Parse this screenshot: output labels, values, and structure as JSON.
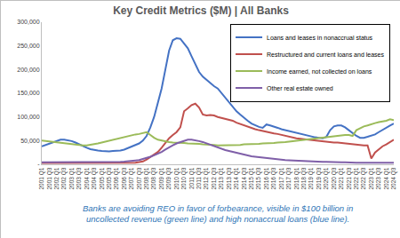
{
  "chart_data": {
    "type": "line",
    "title": "Key Credit Metrics ($M) | All Banks",
    "categories": [
      "2001 Q1",
      null,
      "2001 Q3",
      null,
      "2002 Q1",
      null,
      "2002 Q3",
      null,
      "2003 Q1",
      null,
      "2003 Q3",
      null,
      "2004 Q1",
      null,
      "2004 Q3",
      null,
      "2005 Q1",
      null,
      "2005 Q3",
      null,
      "2006 Q1",
      null,
      "2006 Q3",
      null,
      "2007 Q1",
      null,
      "2007 Q3",
      null,
      "2008 Q1",
      null,
      "2008 Q3",
      null,
      "2009 Q1",
      null,
      "2009 Q3",
      null,
      "2010 Q1",
      null,
      "2010 Q3",
      null,
      "2011 Q1",
      null,
      "2011 Q3",
      null,
      "2012 Q1",
      null,
      "2012 Q3",
      null,
      "2013 Q1",
      null,
      "2013 Q3",
      null,
      "2014 Q1",
      null,
      "2014 Q3",
      null,
      "2015 Q1",
      null,
      "2015 Q3",
      null,
      "2016 Q1",
      null,
      "2016 Q3",
      null,
      "2017 Q1",
      null,
      "2017 Q3",
      null,
      "2018 Q1",
      null,
      "2018 Q3",
      null,
      "2019 Q1",
      null,
      "2019 Q3",
      null,
      "2020 Q1",
      null,
      "2020 Q3",
      null,
      "2021 Q1",
      null,
      "2021 Q3",
      null,
      "2022 Q1",
      null,
      "2022 Q3",
      null,
      "2023 Q1",
      null,
      "2023 Q3",
      null,
      "2024 Q1",
      null,
      "2024 Q3"
    ],
    "series": [
      {
        "name": "Loans and leases in nonaccrual status",
        "color": "#4472c4",
        "values": [
          38000,
          41000,
          44000,
          47000,
          50000,
          52000,
          52000,
          51000,
          49000,
          46000,
          42000,
          38000,
          35000,
          32000,
          30000,
          29000,
          28000,
          27000,
          27000,
          28000,
          28000,
          29000,
          31000,
          34000,
          37000,
          40000,
          44000,
          50000,
          60000,
          78000,
          100000,
          130000,
          160000,
          200000,
          240000,
          262000,
          266000,
          265000,
          255000,
          245000,
          228000,
          210000,
          195000,
          185000,
          178000,
          172000,
          165000,
          160000,
          150000,
          140000,
          130000,
          122000,
          112000,
          105000,
          98000,
          92000,
          86000,
          82000,
          79000,
          77000,
          84000,
          82000,
          80000,
          77000,
          74000,
          72000,
          70000,
          68000,
          66000,
          64000,
          62000,
          60000,
          58000,
          57000,
          56000,
          55000,
          58000,
          72000,
          80000,
          82000,
          82000,
          78000,
          72000,
          66000,
          60000,
          56000,
          56000,
          58000,
          60000,
          63000,
          68000,
          73000,
          78000,
          82000,
          86000
        ]
      },
      {
        "name": "Restructured and current loans and leases",
        "color": "#c0504d",
        "values": [
          3000,
          3000,
          3000,
          3000,
          3000,
          3000,
          3000,
          3000,
          3000,
          3000,
          3000,
          3000,
          2500,
          2500,
          2500,
          2500,
          2500,
          2500,
          2500,
          2500,
          2500,
          2500,
          2500,
          2500,
          3000,
          3500,
          4500,
          6000,
          10000,
          15000,
          20000,
          26000,
          35000,
          45000,
          55000,
          62000,
          68000,
          78000,
          112000,
          118000,
          125000,
          128000,
          120000,
          105000,
          103000,
          104000,
          103000,
          100000,
          98000,
          96000,
          94000,
          92000,
          88000,
          85000,
          82000,
          79000,
          76000,
          74000,
          72000,
          70000,
          68000,
          67000,
          65000,
          64000,
          62000,
          60000,
          58000,
          57000,
          55000,
          54000,
          53000,
          52000,
          51000,
          50000,
          49000,
          48000,
          47000,
          47000,
          46000,
          46000,
          45000,
          44000,
          43000,
          42000,
          42000,
          41000,
          40000,
          40000,
          12000,
          25000,
          32000,
          38000,
          42000,
          47000,
          52000
        ]
      },
      {
        "name": "Income earned, not collected on loans",
        "color": "#9bbb59",
        "values": [
          50000,
          49000,
          48000,
          47000,
          46000,
          45000,
          44000,
          43000,
          42000,
          41000,
          40000,
          40000,
          40000,
          41000,
          42000,
          44000,
          46000,
          48000,
          50000,
          52000,
          54000,
          56000,
          58000,
          60000,
          62000,
          63000,
          64000,
          66000,
          68000,
          62000,
          56000,
          52000,
          50000,
          48000,
          47000,
          46000,
          46000,
          45000,
          45000,
          44000,
          44000,
          43000,
          43000,
          42000,
          42000,
          41000,
          41000,
          40000,
          40000,
          40000,
          40000,
          41000,
          41000,
          41000,
          42000,
          42000,
          42000,
          43000,
          43000,
          44000,
          44000,
          45000,
          45000,
          46000,
          46000,
          47000,
          48000,
          49000,
          50000,
          51000,
          52000,
          53000,
          54000,
          55000,
          56000,
          57000,
          58000,
          59000,
          60000,
          61000,
          61000,
          62000,
          62000,
          60000,
          72000,
          76000,
          80000,
          82000,
          85000,
          87000,
          89000,
          90000,
          92000,
          95000,
          93000
        ]
      },
      {
        "name": "Other real estate owned",
        "color": "#7f5fa8",
        "values": [
          4000,
          4000,
          4000,
          4000,
          4000,
          4000,
          4000,
          4000,
          4500,
          4500,
          4500,
          4500,
          4500,
          4500,
          4500,
          4500,
          4500,
          4500,
          4500,
          4500,
          5000,
          5000,
          5500,
          6000,
          7000,
          8000,
          9000,
          11000,
          13000,
          16000,
          19000,
          22000,
          26000,
          31000,
          36000,
          40000,
          44000,
          47000,
          50000,
          52000,
          52000,
          51000,
          49000,
          47000,
          44000,
          41000,
          38000,
          35000,
          32000,
          30000,
          28000,
          26000,
          24000,
          22000,
          20000,
          18000,
          17000,
          16000,
          15000,
          14000,
          13000,
          12000,
          11000,
          10000,
          9500,
          9000,
          8500,
          8000,
          7500,
          7000,
          6500,
          6000,
          6000,
          5500,
          5500,
          5000,
          5000,
          4500,
          4500,
          4000,
          4000,
          4000,
          3500,
          3500,
          3500,
          3500,
          3500,
          3500,
          3500,
          3500,
          3500,
          3500,
          3500,
          3500,
          3500
        ]
      }
    ],
    "ylim": [
      0,
      300000
    ],
    "yticks": [
      {
        "value": 0,
        "label": "-"
      },
      {
        "value": 50000,
        "label": "50,000"
      },
      {
        "value": 100000,
        "label": "100,000"
      },
      {
        "value": 150000,
        "label": "150,000"
      },
      {
        "value": 200000,
        "label": "200,000"
      },
      {
        "value": 250000,
        "label": "250,000"
      },
      {
        "value": 300000,
        "label": "300,000"
      }
    ],
    "grid": false,
    "legend": "upper right",
    "annotations": [
      "Banks are avoiding REO in favor of forbearance, visible in $100 billion in",
      "uncollected revenue (green line) and high nonaccrual loans (blue line)."
    ]
  }
}
